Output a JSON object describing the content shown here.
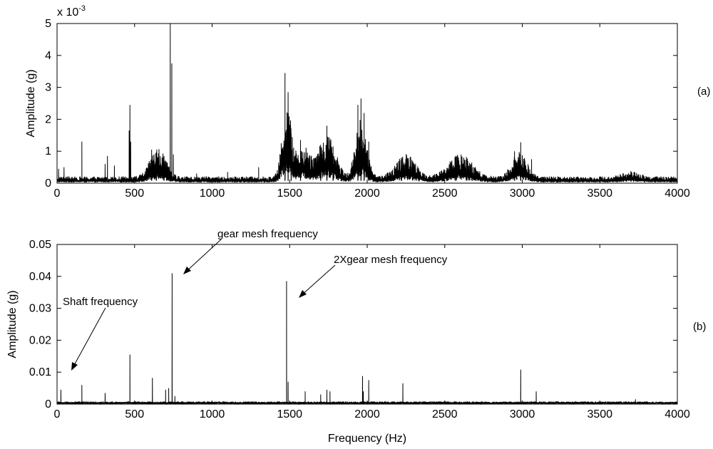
{
  "chart_data": [
    {
      "type": "line",
      "panel_label": "(a)",
      "ylabel": "Amplitude (g)",
      "y_multiplier_base": "x 10",
      "y_multiplier_exp": "-3",
      "xlim": [
        0,
        4000
      ],
      "ylim": [
        0,
        5
      ],
      "xticks": [
        "0",
        "500",
        "1000",
        "1500",
        "2000",
        "2500",
        "3000",
        "3500",
        "4000"
      ],
      "yticks": [
        "0",
        "1",
        "2",
        "3",
        "4",
        "5"
      ],
      "noise_floor": 0.15,
      "series": [
        {
          "peaks": [
            {
              "x": 10,
              "y": 0.45
            },
            {
              "x": 45,
              "y": 0.5
            },
            {
              "x": 160,
              "y": 1.3
            },
            {
              "x": 310,
              "y": 0.6
            },
            {
              "x": 325,
              "y": 0.85
            },
            {
              "x": 370,
              "y": 0.55
            },
            {
              "x": 465,
              "y": 1.65
            },
            {
              "x": 470,
              "y": 2.45
            },
            {
              "x": 475,
              "y": 1.3
            },
            {
              "x": 610,
              "y": 1.05
            },
            {
              "x": 640,
              "y": 0.9
            },
            {
              "x": 690,
              "y": 0.85
            },
            {
              "x": 730,
              "y": 5.0
            },
            {
              "x": 740,
              "y": 3.75
            },
            {
              "x": 750,
              "y": 0.9
            },
            {
              "x": 900,
              "y": 0.3
            },
            {
              "x": 1100,
              "y": 0.35
            },
            {
              "x": 1300,
              "y": 0.5
            },
            {
              "x": 1470,
              "y": 3.45
            },
            {
              "x": 1490,
              "y": 2.85
            },
            {
              "x": 1510,
              "y": 1.55
            },
            {
              "x": 1570,
              "y": 1.35
            },
            {
              "x": 1700,
              "y": 1.2
            },
            {
              "x": 1740,
              "y": 1.8
            },
            {
              "x": 1780,
              "y": 1.15
            },
            {
              "x": 1940,
              "y": 2.45
            },
            {
              "x": 1960,
              "y": 2.65
            },
            {
              "x": 1980,
              "y": 2.2
            },
            {
              "x": 2010,
              "y": 1.3
            },
            {
              "x": 2220,
              "y": 0.8
            },
            {
              "x": 2570,
              "y": 0.85
            },
            {
              "x": 2640,
              "y": 0.82
            },
            {
              "x": 2950,
              "y": 1.0
            },
            {
              "x": 2990,
              "y": 1.28
            },
            {
              "x": 3060,
              "y": 0.75
            },
            {
              "x": 3700,
              "y": 0.38
            }
          ],
          "humps": [
            {
              "x": 650,
              "y": 0.65,
              "w": 70
            },
            {
              "x": 1480,
              "y": 1.6,
              "w": 40
            },
            {
              "x": 1580,
              "y": 0.7,
              "w": 70
            },
            {
              "x": 1740,
              "y": 0.95,
              "w": 80
            },
            {
              "x": 1960,
              "y": 1.3,
              "w": 50
            },
            {
              "x": 2250,
              "y": 0.5,
              "w": 90
            },
            {
              "x": 2600,
              "y": 0.5,
              "w": 110
            },
            {
              "x": 2980,
              "y": 0.55,
              "w": 70
            },
            {
              "x": 3700,
              "y": 0.12,
              "w": 80
            }
          ]
        }
      ]
    },
    {
      "type": "line",
      "panel_label": "(b)",
      "xlabel": "Frequency (Hz)",
      "ylabel": "Amplitude (g)",
      "xlim": [
        0,
        4000
      ],
      "ylim": [
        0,
        0.05
      ],
      "xticks": [
        "0",
        "500",
        "1000",
        "1500",
        "2000",
        "2500",
        "3000",
        "3500",
        "4000"
      ],
      "yticks": [
        "0",
        "0.01",
        "0.02",
        "0.03",
        "0.04",
        "0.05"
      ],
      "noise_floor": 0.0006,
      "series": [
        {
          "peaks": [
            {
              "x": 25,
              "y": 0.0045
            },
            {
              "x": 160,
              "y": 0.006
            },
            {
              "x": 310,
              "y": 0.0035
            },
            {
              "x": 470,
              "y": 0.0155
            },
            {
              "x": 615,
              "y": 0.0082
            },
            {
              "x": 700,
              "y": 0.0045
            },
            {
              "x": 720,
              "y": 0.005
            },
            {
              "x": 742,
              "y": 0.041
            },
            {
              "x": 760,
              "y": 0.0025
            },
            {
              "x": 1480,
              "y": 0.0385
            },
            {
              "x": 1490,
              "y": 0.007
            },
            {
              "x": 1600,
              "y": 0.004
            },
            {
              "x": 1700,
              "y": 0.003
            },
            {
              "x": 1740,
              "y": 0.0045
            },
            {
              "x": 1760,
              "y": 0.004
            },
            {
              "x": 1970,
              "y": 0.0088
            },
            {
              "x": 1975,
              "y": 0.004
            },
            {
              "x": 2010,
              "y": 0.0075
            },
            {
              "x": 2230,
              "y": 0.0065
            },
            {
              "x": 2990,
              "y": 0.0108
            },
            {
              "x": 3090,
              "y": 0.004
            },
            {
              "x": 3730,
              "y": 0.0015
            }
          ]
        }
      ],
      "annotations": [
        {
          "text": "gear mesh frequency",
          "x": 742,
          "y": 0.041
        },
        {
          "text": "2Xgear mesh frequency",
          "x": 1480,
          "y": 0.0385
        },
        {
          "text": "Shaft frequency",
          "x": 25,
          "y": 0.0045
        }
      ]
    }
  ]
}
